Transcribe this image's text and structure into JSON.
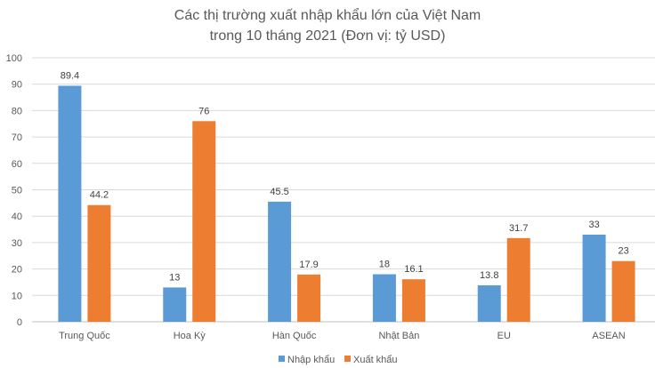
{
  "chart_data": {
    "type": "bar",
    "title": [
      "Các thị trường xuất nhập khẩu lớn của Việt Nam",
      "trong 10 tháng 2021 (Đơn vị: tỷ USD)"
    ],
    "categories": [
      "Trung Quốc",
      "Hoa Kỳ",
      "Hàn Quốc",
      "Nhật Bản",
      "EU",
      "ASEAN"
    ],
    "series": [
      {
        "name": "Nhập khẩu",
        "color": "#5B9BD5",
        "values": [
          89.4,
          13,
          45.5,
          18,
          13.8,
          33
        ]
      },
      {
        "name": "Xuất khẩu",
        "color": "#ED7D31",
        "values": [
          44.2,
          76,
          17.9,
          16.1,
          31.7,
          23
        ]
      }
    ],
    "ylim": [
      0,
      100
    ],
    "yticks": [
      0,
      10,
      20,
      30,
      40,
      50,
      60,
      70,
      80,
      90,
      100
    ],
    "grid": true,
    "data_labels": true,
    "legend": "bottom"
  }
}
